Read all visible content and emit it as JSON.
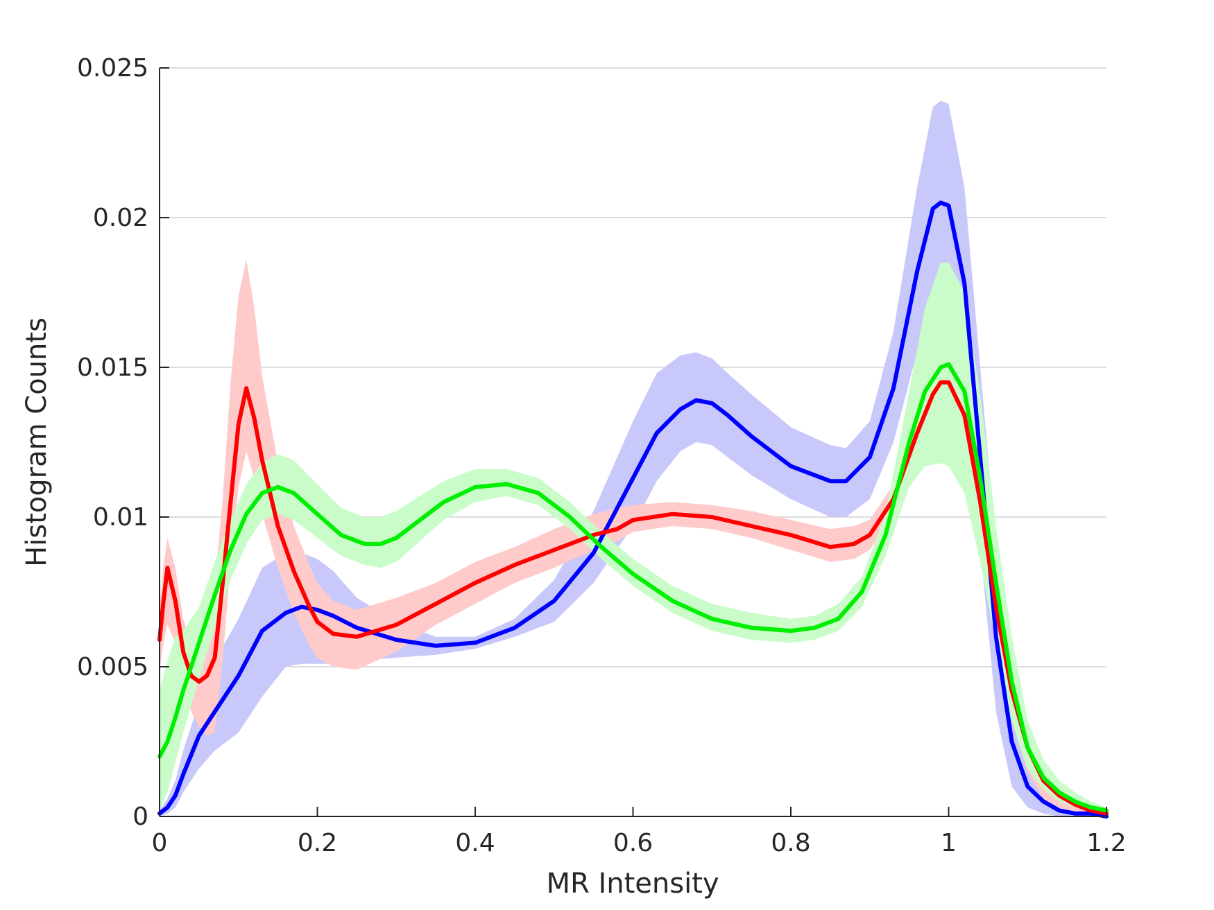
{
  "chart_data": {
    "type": "line",
    "title": "",
    "xlabel": "MR Intensity",
    "ylabel": "Histogram Counts",
    "xlim": [
      0,
      1.2
    ],
    "ylim": [
      0,
      0.025
    ],
    "xticks": [
      0,
      0.2,
      0.4,
      0.6,
      0.8,
      1,
      1.2
    ],
    "xtick_labels": [
      "0",
      "0.2",
      "0.4",
      "0.6",
      "0.8",
      "1",
      "1.2"
    ],
    "yticks": [
      0,
      0.005,
      0.01,
      0.015,
      0.02,
      0.025
    ],
    "ytick_labels": [
      "0",
      "0.005",
      "0.01",
      "0.015",
      "0.02",
      "0.025"
    ],
    "grid": "horizontal",
    "legend": "none",
    "series": [
      {
        "color": "#0000ff",
        "band_color": "#c8c8fa",
        "x": [
          0,
          0.01,
          0.02,
          0.03,
          0.05,
          0.07,
          0.1,
          0.13,
          0.16,
          0.18,
          0.2,
          0.22,
          0.25,
          0.3,
          0.35,
          0.4,
          0.45,
          0.5,
          0.55,
          0.6,
          0.63,
          0.66,
          0.68,
          0.7,
          0.72,
          0.75,
          0.8,
          0.85,
          0.87,
          0.9,
          0.93,
          0.96,
          0.98,
          0.99,
          1.0,
          1.02,
          1.04,
          1.06,
          1.08,
          1.1,
          1.12,
          1.14,
          1.16,
          1.18,
          1.2
        ],
        "y": [
          0.0001,
          0.0003,
          0.0007,
          0.0014,
          0.0027,
          0.0035,
          0.0047,
          0.0062,
          0.0068,
          0.007,
          0.0069,
          0.0067,
          0.0063,
          0.0059,
          0.0057,
          0.0058,
          0.0063,
          0.0072,
          0.0088,
          0.0113,
          0.0128,
          0.0136,
          0.0139,
          0.0138,
          0.0134,
          0.0127,
          0.0117,
          0.0112,
          0.0112,
          0.012,
          0.0143,
          0.0182,
          0.0203,
          0.0205,
          0.0204,
          0.0178,
          0.012,
          0.006,
          0.0025,
          0.001,
          0.0005,
          0.0002,
          0.0001,
          0.0001,
          0
        ],
        "lower": [
          0,
          0.0001,
          0.0003,
          0.0008,
          0.0016,
          0.0022,
          0.0028,
          0.004,
          0.005,
          0.0051,
          0.0051,
          0.0051,
          0.0052,
          0.0053,
          0.0054,
          0.0056,
          0.006,
          0.0065,
          0.0078,
          0.0097,
          0.0112,
          0.0122,
          0.0125,
          0.0124,
          0.012,
          0.0114,
          0.0106,
          0.01,
          0.01,
          0.0106,
          0.0125,
          0.0155,
          0.017,
          0.0172,
          0.017,
          0.0148,
          0.009,
          0.0035,
          0.001,
          0.0003,
          0.0001,
          0,
          0,
          0,
          0
        ],
        "upper": [
          0.0002,
          0.0006,
          0.0012,
          0.0022,
          0.0038,
          0.0052,
          0.0066,
          0.0083,
          0.0088,
          0.0088,
          0.0086,
          0.0082,
          0.0073,
          0.0065,
          0.006,
          0.006,
          0.0066,
          0.0079,
          0.0102,
          0.0132,
          0.0148,
          0.0154,
          0.0155,
          0.0153,
          0.0148,
          0.0141,
          0.013,
          0.0124,
          0.0123,
          0.0132,
          0.0162,
          0.021,
          0.0237,
          0.0239,
          0.0238,
          0.021,
          0.015,
          0.009,
          0.0045,
          0.002,
          0.001,
          0.0005,
          0.0002,
          0.0001,
          0.0001
        ]
      },
      {
        "color": "#ff0000",
        "band_color": "#ffcaca",
        "x": [
          0,
          0.005,
          0.01,
          0.02,
          0.03,
          0.04,
          0.05,
          0.06,
          0.07,
          0.08,
          0.09,
          0.1,
          0.11,
          0.12,
          0.13,
          0.15,
          0.17,
          0.19,
          0.2,
          0.22,
          0.25,
          0.3,
          0.35,
          0.4,
          0.45,
          0.5,
          0.55,
          0.58,
          0.6,
          0.65,
          0.7,
          0.75,
          0.8,
          0.85,
          0.88,
          0.9,
          0.93,
          0.96,
          0.98,
          0.99,
          1.0,
          1.02,
          1.04,
          1.06,
          1.08,
          1.1,
          1.12,
          1.14,
          1.16,
          1.18,
          1.2
        ],
        "y": [
          0.0059,
          0.0072,
          0.0083,
          0.0072,
          0.0055,
          0.0047,
          0.0045,
          0.0047,
          0.0053,
          0.0078,
          0.0105,
          0.0131,
          0.0143,
          0.0133,
          0.0119,
          0.0097,
          0.0082,
          0.007,
          0.0065,
          0.0061,
          0.006,
          0.0064,
          0.0071,
          0.0078,
          0.0084,
          0.0089,
          0.0094,
          0.0096,
          0.0099,
          0.0101,
          0.01,
          0.0097,
          0.0094,
          0.009,
          0.0091,
          0.0094,
          0.0106,
          0.0128,
          0.0141,
          0.0145,
          0.0145,
          0.0134,
          0.0105,
          0.007,
          0.0042,
          0.0023,
          0.0012,
          0.0007,
          0.0004,
          0.0002,
          0.0001
        ],
        "lower": [
          0.0049,
          0.0058,
          0.0064,
          0.0058,
          0.0044,
          0.0035,
          0.003,
          0.0027,
          0.0028,
          0.0052,
          0.0085,
          0.011,
          0.0122,
          0.0113,
          0.0101,
          0.0083,
          0.0068,
          0.0057,
          0.0053,
          0.005,
          0.0049,
          0.0055,
          0.0064,
          0.0071,
          0.0078,
          0.0083,
          0.0089,
          0.0092,
          0.0095,
          0.0097,
          0.0096,
          0.0093,
          0.0089,
          0.0085,
          0.0086,
          0.0089,
          0.0101,
          0.0122,
          0.0135,
          0.0139,
          0.0139,
          0.0127,
          0.0097,
          0.006,
          0.0032,
          0.0015,
          0.0006,
          0.0003,
          0.0001,
          0.0001,
          0
        ],
        "upper": [
          0.0069,
          0.0084,
          0.0093,
          0.0083,
          0.0066,
          0.0058,
          0.006,
          0.0067,
          0.0078,
          0.0106,
          0.0145,
          0.0174,
          0.0186,
          0.017,
          0.0147,
          0.0118,
          0.0097,
          0.0084,
          0.0078,
          0.0072,
          0.0069,
          0.0073,
          0.0078,
          0.0085,
          0.009,
          0.0096,
          0.0101,
          0.0103,
          0.0104,
          0.0105,
          0.0104,
          0.0102,
          0.0099,
          0.0096,
          0.0097,
          0.0099,
          0.0111,
          0.0134,
          0.0147,
          0.0151,
          0.0151,
          0.0141,
          0.0115,
          0.0082,
          0.0052,
          0.0031,
          0.0018,
          0.0011,
          0.0007,
          0.0004,
          0.0003
        ]
      },
      {
        "color": "#00ee00",
        "band_color": "#c9fcc9",
        "x": [
          0,
          0.01,
          0.02,
          0.03,
          0.05,
          0.07,
          0.09,
          0.11,
          0.13,
          0.15,
          0.17,
          0.2,
          0.23,
          0.26,
          0.28,
          0.3,
          0.33,
          0.36,
          0.4,
          0.44,
          0.48,
          0.52,
          0.56,
          0.6,
          0.65,
          0.7,
          0.75,
          0.8,
          0.83,
          0.86,
          0.89,
          0.92,
          0.95,
          0.97,
          0.99,
          1.0,
          1.02,
          1.04,
          1.06,
          1.08,
          1.1,
          1.12,
          1.14,
          1.16,
          1.18,
          1.2
        ],
        "y": [
          0.002,
          0.0025,
          0.0033,
          0.0042,
          0.0058,
          0.0074,
          0.0089,
          0.0101,
          0.0108,
          0.011,
          0.0108,
          0.0101,
          0.0094,
          0.0091,
          0.0091,
          0.0093,
          0.0099,
          0.0105,
          0.011,
          0.0111,
          0.0108,
          0.01,
          0.009,
          0.0081,
          0.0072,
          0.0066,
          0.0063,
          0.0062,
          0.0063,
          0.0066,
          0.0075,
          0.0094,
          0.0125,
          0.0142,
          0.015,
          0.0151,
          0.0142,
          0.0113,
          0.0078,
          0.0045,
          0.0023,
          0.0013,
          0.0008,
          0.0005,
          0.0003,
          0.0002
        ],
        "lower": [
          0.0002,
          0.0008,
          0.0018,
          0.0028,
          0.0046,
          0.0063,
          0.0079,
          0.0091,
          0.0099,
          0.0101,
          0.0099,
          0.0093,
          0.0087,
          0.0084,
          0.0083,
          0.0085,
          0.0092,
          0.0099,
          0.0105,
          0.0107,
          0.0104,
          0.0096,
          0.0086,
          0.0077,
          0.0068,
          0.0062,
          0.0059,
          0.0058,
          0.0059,
          0.0062,
          0.007,
          0.0087,
          0.011,
          0.0117,
          0.0118,
          0.0117,
          0.0108,
          0.0085,
          0.0058,
          0.0032,
          0.0016,
          0.0009,
          0.0005,
          0.0003,
          0.0002,
          0.0001
        ],
        "upper": [
          0.0042,
          0.0052,
          0.006,
          0.0062,
          0.007,
          0.0085,
          0.0099,
          0.0111,
          0.0118,
          0.0121,
          0.0119,
          0.0111,
          0.0103,
          0.01,
          0.01,
          0.0102,
          0.0107,
          0.0112,
          0.0116,
          0.0116,
          0.0113,
          0.0105,
          0.0095,
          0.0086,
          0.0077,
          0.0071,
          0.0068,
          0.0066,
          0.0067,
          0.0071,
          0.008,
          0.0101,
          0.0142,
          0.017,
          0.0185,
          0.0185,
          0.0175,
          0.0141,
          0.0097,
          0.006,
          0.0032,
          0.0019,
          0.0012,
          0.0008,
          0.0005,
          0.0003
        ]
      }
    ]
  }
}
